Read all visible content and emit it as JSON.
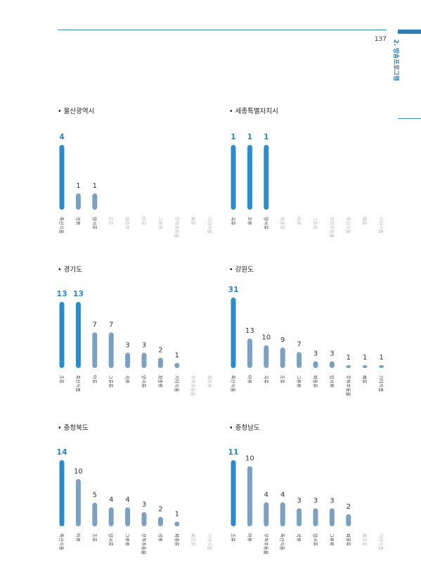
{
  "page": {
    "number": "137",
    "section": "2. 방송프로그램"
  },
  "chart_data": [
    {
      "type": "bar",
      "title": "• 울산광역시",
      "categories": [
        "축산식품",
        "곡류",
        "양서류",
        "조류",
        "파충류",
        "어류",
        "그류류",
        "무척추동물",
        "패류",
        "기타식품"
      ],
      "values": [
        4,
        1,
        1,
        0,
        0,
        0,
        0,
        0,
        0,
        0
      ],
      "value_labels": [
        "4",
        "1",
        "1",
        "",
        "",
        "",
        "",
        "",
        "",
        ""
      ],
      "highlight_color": "#2e8bc9",
      "bar_color": "#7aa1c4"
    },
    {
      "type": "bar",
      "title": "• 세종특별자치시",
      "categories": [
        "곡류",
        "조류",
        "양서류",
        "파충류",
        "어류",
        "그류류",
        "무척추동물",
        "축산식품",
        "패류",
        "기타식품"
      ],
      "values": [
        1,
        1,
        1,
        0,
        0,
        0,
        0,
        0,
        0,
        0
      ],
      "value_labels": [
        "1",
        "1",
        "1",
        "",
        "",
        "",
        "",
        "",
        "",
        ""
      ],
      "highlight_color": "#2e8bc9",
      "bar_color": "#7aa1c4"
    },
    {
      "type": "bar",
      "title": "• 경기도",
      "categories": [
        "조류",
        "축산식품",
        "어류",
        "그류류",
        "곡류",
        "양서류",
        "파충류",
        "기타식품",
        "무척추동물",
        "패조류"
      ],
      "values": [
        13,
        13,
        7,
        7,
        3,
        3,
        2,
        1,
        0,
        0
      ],
      "value_labels": [
        "13",
        "13",
        "7",
        "7",
        "3",
        "3",
        "2",
        "1",
        "",
        ""
      ],
      "highlight_color": "#2e8bc9",
      "bar_color": "#7aa1c4"
    },
    {
      "type": "bar",
      "title": "• 강원도",
      "categories": [
        "축산식품",
        "어류",
        "곡류",
        "조류",
        "그류류",
        "파충류",
        "양서류",
        "무척추동물",
        "패류",
        "기타식품"
      ],
      "values": [
        31,
        13,
        10,
        9,
        7,
        3,
        3,
        1,
        1,
        1
      ],
      "value_labels": [
        "31",
        "13",
        "10",
        "9",
        "7",
        "3",
        "3",
        "1",
        "1",
        "1"
      ],
      "highlight_color": "#2e8bc9",
      "bar_color": "#7aa1c4"
    },
    {
      "type": "bar",
      "title": "• 충청북도",
      "categories": [
        "축산식품",
        "어류",
        "조류",
        "양서류",
        "그류류",
        "무척추동물",
        "곡류",
        "파충류",
        "패조류",
        "기타식품"
      ],
      "values": [
        14,
        10,
        5,
        4,
        4,
        3,
        2,
        1,
        0,
        0
      ],
      "value_labels": [
        "14",
        "10",
        "5",
        "4",
        "4",
        "3",
        "2",
        "1",
        "",
        ""
      ],
      "highlight_color": "#2e8bc9",
      "bar_color": "#7aa1c4"
    },
    {
      "type": "bar",
      "title": "• 충청남도",
      "categories": [
        "조류",
        "어류",
        "무척추동물",
        "축산식품",
        "곡류",
        "양서류",
        "그류류",
        "파충류",
        "패조류",
        "기타식품"
      ],
      "values": [
        11,
        10,
        4,
        4,
        3,
        3,
        3,
        2,
        0,
        0
      ],
      "value_labels": [
        "11",
        "10",
        "4",
        "4",
        "3",
        "3",
        "3",
        "2",
        "",
        ""
      ],
      "highlight_color": "#2e8bc9",
      "bar_color": "#7aa1c4"
    }
  ]
}
